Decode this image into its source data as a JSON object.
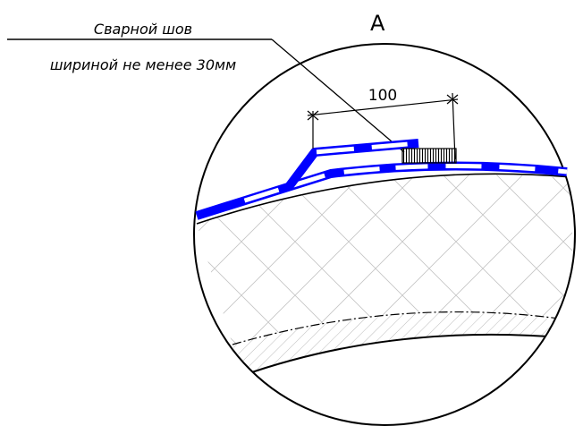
{
  "detail_label": "А",
  "callout": {
    "line1": "Сварной шов",
    "line2": "шириной не менее 30мм"
  },
  "dimension": {
    "value": "100"
  },
  "colors": {
    "ink": "#000000",
    "membrane": "#0000ff",
    "background": "#ffffff",
    "hatch": "#b3b3b3"
  }
}
